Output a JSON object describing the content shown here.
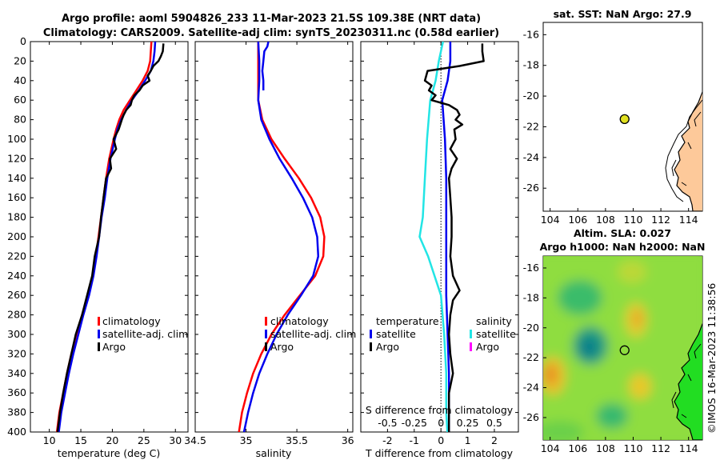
{
  "figure": {
    "title_line1": "Argo profile: aoml 5904826_233 11-Mar-2023 21.5S 109.38E (NRT data)",
    "title_line2": "Climatology: CARS2009. Satellite-adj clim: synTS_20230311.nc (0.58d earlier)",
    "credit": "©IMOS 16-Mar-2023 11:38:56"
  },
  "colors": {
    "climatology": "#ff0000",
    "satellite": "#0000ee",
    "argo": "#000000",
    "salinity_satellite": "#22e5e5",
    "salinity_argo": "#ff00ff",
    "land": "#fdc99a",
    "marker": "#e0e020"
  },
  "chart_data": [
    {
      "type": "line",
      "id": "temperature",
      "xlabel": "temperature (deg C)",
      "ylabel": "",
      "xlim": [
        7,
        32
      ],
      "ylim": [
        400,
        0
      ],
      "xticks": [
        10,
        15,
        20,
        25,
        30
      ],
      "yticks": [
        0,
        20,
        40,
        60,
        80,
        100,
        120,
        140,
        160,
        180,
        200,
        220,
        240,
        260,
        280,
        300,
        320,
        340,
        360,
        380,
        400
      ],
      "legend": [
        "climatology",
        "satellite-adj. clim",
        "Argo"
      ],
      "series": [
        {
          "name": "climatology",
          "depth": [
            0,
            10,
            20,
            30,
            40,
            50,
            60,
            70,
            80,
            90,
            100,
            120,
            140,
            160,
            180,
            200,
            220,
            240,
            260,
            280,
            300,
            320,
            340,
            360,
            380,
            400
          ],
          "values": [
            26.2,
            26.1,
            26.0,
            25.6,
            24.8,
            23.8,
            22.8,
            21.8,
            21.1,
            20.6,
            20.2,
            19.5,
            19.0,
            18.6,
            18.2,
            17.8,
            17.4,
            16.9,
            16.1,
            15.2,
            14.3,
            13.5,
            12.8,
            12.2,
            11.6,
            11.2
          ]
        },
        {
          "name": "satellite-adj. clim",
          "depth": [
            0,
            10,
            20,
            30,
            40,
            50,
            60,
            70,
            80,
            90,
            100,
            120,
            140,
            160,
            180,
            200,
            220,
            240,
            260,
            280,
            300,
            320,
            340,
            360,
            380,
            400
          ],
          "values": [
            26.8,
            26.7,
            26.5,
            26.1,
            25.2,
            24.2,
            23.1,
            22.2,
            21.4,
            20.8,
            20.4,
            19.7,
            19.2,
            18.8,
            18.3,
            17.9,
            17.5,
            17.0,
            16.3,
            15.4,
            14.6,
            13.8,
            13.1,
            12.5,
            11.9,
            11.5
          ]
        },
        {
          "name": "Argo",
          "depth": [
            2,
            10,
            15,
            20,
            25,
            30,
            35,
            40,
            45,
            50,
            55,
            60,
            65,
            70,
            75,
            80,
            90,
            100,
            110,
            120,
            130,
            140,
            160,
            180,
            200,
            220,
            240,
            260,
            280,
            300,
            320,
            340,
            360,
            380,
            400
          ],
          "values": [
            28.1,
            28.0,
            27.7,
            27.3,
            26.5,
            26.1,
            25.6,
            25.9,
            24.8,
            24.3,
            23.5,
            23.1,
            22.9,
            22.2,
            21.8,
            21.5,
            21.0,
            20.2,
            20.6,
            19.6,
            19.8,
            19.0,
            18.6,
            18.2,
            17.9,
            17.2,
            16.8,
            16.0,
            15.2,
            14.2,
            13.5,
            12.8,
            12.2,
            11.7,
            11.3
          ]
        }
      ]
    },
    {
      "type": "line",
      "id": "salinity",
      "xlabel": "salinity",
      "ylabel": "",
      "xlim": [
        34.5,
        36.05
      ],
      "ylim": [
        400,
        0
      ],
      "xticks": [
        34.5,
        35,
        35.5,
        36
      ],
      "xticklabels": [
        "34.5",
        "35",
        "35.5",
        "36"
      ],
      "legend": [
        "climatology",
        "satellite-adj. clim",
        "Argo"
      ],
      "series": [
        {
          "name": "climatology",
          "depth": [
            0,
            20,
            40,
            60,
            80,
            100,
            120,
            140,
            160,
            180,
            200,
            220,
            240,
            260,
            280,
            300,
            320,
            340,
            360,
            380,
            400
          ],
          "values": [
            35.12,
            35.12,
            35.12,
            35.12,
            35.16,
            35.25,
            35.38,
            35.52,
            35.64,
            35.73,
            35.77,
            35.76,
            35.68,
            35.53,
            35.38,
            35.25,
            35.15,
            35.07,
            35.01,
            34.96,
            34.93
          ]
        },
        {
          "name": "satellite-adj. clim",
          "depth": [
            0,
            20,
            40,
            60,
            80,
            100,
            120,
            140,
            160,
            180,
            200,
            220,
            240,
            260,
            280,
            300,
            320,
            340,
            360,
            380,
            400
          ],
          "values": [
            35.12,
            35.13,
            35.13,
            35.12,
            35.15,
            35.23,
            35.33,
            35.45,
            35.56,
            35.65,
            35.7,
            35.71,
            35.66,
            35.54,
            35.41,
            35.3,
            35.21,
            35.13,
            35.07,
            35.02,
            34.98
          ]
        },
        {
          "name": "Argo",
          "depth": [
            0,
            5,
            10,
            20,
            30,
            40,
            50
          ],
          "values": [
            35.22,
            35.21,
            35.18,
            35.17,
            35.16,
            35.17,
            35.17
          ]
        }
      ]
    },
    {
      "type": "line",
      "id": "differences",
      "xlabel": "T difference from climatology",
      "xlabel_top": "S difference from climatology",
      "xlim": [
        -3,
        2.9
      ],
      "ylim": [
        400,
        0
      ],
      "xticks": [
        -2,
        -1,
        0,
        1,
        2
      ],
      "xticks_salinity": [
        -0.5,
        -0.25,
        0,
        0.25,
        0.5
      ],
      "xticklabels_salinity": [
        "-0.5",
        "-0.25",
        "0",
        "0.25",
        "0.5"
      ],
      "legend_temperature_title": "temperature",
      "legend_salinity_title": "salinity",
      "legend_temperature": [
        "satellite",
        "Argo"
      ],
      "legend_salinity": [
        "satellite",
        "Argo"
      ],
      "series": [
        {
          "name": "T satellite",
          "depth": [
            0,
            20,
            40,
            60,
            80,
            100,
            140,
            180,
            220,
            260,
            300,
            340,
            380,
            400
          ],
          "values": [
            0.35,
            0.35,
            0.25,
            0.05,
            0.1,
            0.15,
            0.2,
            0.2,
            0.2,
            0.2,
            0.25,
            0.3,
            0.3,
            0.3
          ]
        },
        {
          "name": "S satellite",
          "depth": [
            0,
            20,
            40,
            60,
            100,
            140,
            180,
            200,
            220,
            260,
            300,
            340,
            380,
            400
          ],
          "values": [
            0.02,
            -0.02,
            -0.05,
            -0.1,
            -0.13,
            -0.15,
            -0.17,
            -0.2,
            -0.12,
            0,
            0.03,
            0.05,
            0.05,
            0.06
          ]
        },
        {
          "name": "T Argo",
          "depth": [
            2,
            10,
            20,
            25,
            30,
            35,
            40,
            45,
            50,
            55,
            60,
            65,
            70,
            75,
            80,
            85,
            90,
            100,
            110,
            120,
            130,
            140,
            160,
            180,
            200,
            220,
            240,
            255,
            265,
            280,
            300,
            320,
            340,
            360,
            380,
            400
          ],
          "values": [
            1.55,
            1.55,
            1.6,
            0.7,
            -0.5,
            -0.55,
            -0.6,
            -0.35,
            -0.45,
            -0.2,
            -0.35,
            0.3,
            0.6,
            0.7,
            0.55,
            0.8,
            0.5,
            0.55,
            0.35,
            0.6,
            0.4,
            0.3,
            0.35,
            0.4,
            0.4,
            0.35,
            0.45,
            0.7,
            0.45,
            0.35,
            0.3,
            0.35,
            0.45,
            0.3,
            0.3,
            0.3
          ]
        }
      ]
    },
    {
      "type": "scatter",
      "id": "sst-map",
      "title": "sat. SST: NaN Argo: 27.9",
      "xlim": [
        103.5,
        115
      ],
      "ylim": [
        -27.5,
        -15.2
      ],
      "xticks": [
        104,
        106,
        108,
        110,
        112,
        114
      ],
      "yticks": [
        -16,
        -18,
        -20,
        -22,
        -24,
        -26
      ],
      "x": [
        109.38
      ],
      "y": [
        -21.5
      ]
    },
    {
      "type": "heatmap",
      "id": "sla-map",
      "title_line1": "Altim. SLA: 0.027",
      "title_line2": "Argo h1000: NaN h2000: NaN",
      "xlim": [
        103.5,
        115
      ],
      "ylim": [
        -27.5,
        -15.2
      ],
      "xticks": [
        104,
        106,
        108,
        110,
        112,
        114
      ],
      "yticks": [
        -16,
        -18,
        -20,
        -22,
        -24,
        -26
      ],
      "x": [
        109.38
      ],
      "y": [
        -21.5
      ]
    }
  ]
}
